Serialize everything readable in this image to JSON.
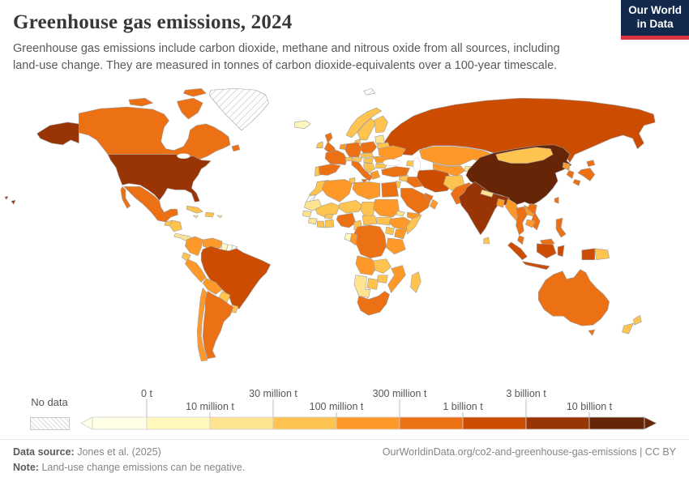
{
  "header": {
    "title": "Greenhouse gas emissions, 2024",
    "subtitle": "Greenhouse gas emissions include carbon dioxide, methane and nitrous oxide from all sources, including land-use change. They are measured in tonnes of carbon dioxide-equivalents over a 100-year timescale.",
    "logo": {
      "line1": "Our World",
      "line2": "in Data",
      "bg_color": "#12294b",
      "accent_color": "#d8353f"
    }
  },
  "chart_data": {
    "type": "choropleth-map",
    "title": "Greenhouse gas emissions, 2024",
    "unit": "tonnes of carbon dioxide-equivalents (CO2e)",
    "year": "2024",
    "legend": {
      "no_data_label": "No data",
      "ticks": [
        "0 t",
        "10 million t",
        "30 million t",
        "100 million t",
        "300 million t",
        "1 billion t",
        "3 billion t",
        "10 billion t"
      ],
      "bins": [
        {
          "range": "< 0 t",
          "color": "#ffffe5"
        },
        {
          "range": "0-10 million t",
          "color": "#fff7bc"
        },
        {
          "range": "10-30 million t",
          "color": "#fee391"
        },
        {
          "range": "30-100 million t",
          "color": "#fec44f"
        },
        {
          "range": "100-300 million t",
          "color": "#fe9929"
        },
        {
          "range": "300 million-1 billion t",
          "color": "#ec7014"
        },
        {
          "range": "1-3 billion t",
          "color": "#cc4c02"
        },
        {
          "range": "3-10 billion t",
          "color": "#993404"
        },
        {
          "range": "> 10 billion t",
          "color": "#662506"
        }
      ],
      "open_ended_left": true,
      "open_ended_right": true
    },
    "countries": {
      "United States": 7,
      "Canada": 5,
      "Greenland": "nodata",
      "Mexico": 5,
      "Guatemala": 3,
      "Honduras-Nicaragua": 3,
      "Costa Rica-Panama": 2,
      "Cuba": 3,
      "Hispaniola": 3,
      "Jamaica": 2,
      "Puerto Rico": 2,
      "Colombia": 4,
      "Venezuela": 4,
      "Guyana": 1,
      "Suriname": 0,
      "French Guiana": "nodata",
      "Ecuador": 3,
      "Peru": 4,
      "Brazil": 6,
      "Bolivia": 4,
      "Paraguay": 3,
      "Uruguay": 3,
      "Argentina": 5,
      "Chile": 4,
      "Iceland": 1,
      "United Kingdom": 5,
      "Ireland": 3,
      "Norway": 3,
      "Sweden": 3,
      "Finland": 3,
      "Denmark": 3,
      "Baltic States": 2,
      "Belarus": 3,
      "Poland": 5,
      "Germany": 5,
      "Benelux": 4,
      "France": 5,
      "Spain": 5,
      "Portugal": 3,
      "Italy": 5,
      "Switzerland": 3,
      "Austria": 3,
      "Czechia-Slovakia": 3,
      "Hungary": 3,
      "Balkans": 3,
      "Greece": 4,
      "Romania": 4,
      "Bulgaria": 3,
      "Ukraine": 4,
      "Russia": 6,
      "Svalbard": "nodata",
      "Kazakhstan": 4,
      "Uzbekistan-Turkmenistan": 4,
      "Kyrgyzstan-Tajikistan": 2,
      "Caucasus": 3,
      "Turkey": 5,
      "Syria": 3,
      "Iraq": 5,
      "Iran": 6,
      "Saudi Arabia": 5,
      "Yemen": 4,
      "Oman": 4,
      "Gulf States": 5,
      "Jordan-Israel": 3,
      "Egypt": 5,
      "Libya": 4,
      "Tunisia": 3,
      "Algeria": 4,
      "Morocco": 3,
      "Western Sahara": "nodata",
      "Mauritania": 2,
      "Mali": 3,
      "Burkina Faso": 3,
      "Niger": 3,
      "Chad": 3,
      "Sudan": 4,
      "South Sudan": 3,
      "Eritrea": 2,
      "Ethiopia": 4,
      "Somalia": 3,
      "Senegal": 2,
      "Guinea": 2,
      "Ivory Coast": 3,
      "Ghana": 3,
      "Nigeria": 5,
      "Cameroon": 3,
      "Central African Republic": 3,
      "DR Congo": 5,
      "Gabon": 1,
      "Congo": 4,
      "Uganda": 3,
      "Kenya": 4,
      "Tanzania": 4,
      "Angola": 4,
      "Zambia": 3,
      "Mozambique": 4,
      "Zimbabwe": 3,
      "Botswana": 3,
      "Namibia": 2,
      "South Africa": 5,
      "Madagascar": 3,
      "Afghanistan": 3,
      "Pakistan": 5,
      "India": 7,
      "Nepal": 2,
      "Bangladesh": 4,
      "Sri Lanka": 3,
      "China": 8,
      "Mongolia": 3,
      "North Korea": 4,
      "South Korea": 5,
      "Japan": 5,
      "Taiwan": 5,
      "Myanmar": 4,
      "Thailand": 5,
      "Laos": 4,
      "Vietnam": 5,
      "Cambodia": 4,
      "Malaysia": 5,
      "Indonesia": 6,
      "Philippines": 5,
      "Papua New Guinea": 3,
      "Australia": 5,
      "New Zealand": 3
    }
  },
  "footer": {
    "datasource_label": "Data source:",
    "datasource_value": "Jones et al. (2025)",
    "note_label": "Note:",
    "note_value": "Land-use change emissions can be negative.",
    "link": "OurWorldinData.org/co2-and-greenhouse-gas-emissions",
    "separator": "|",
    "license": "CC BY"
  }
}
